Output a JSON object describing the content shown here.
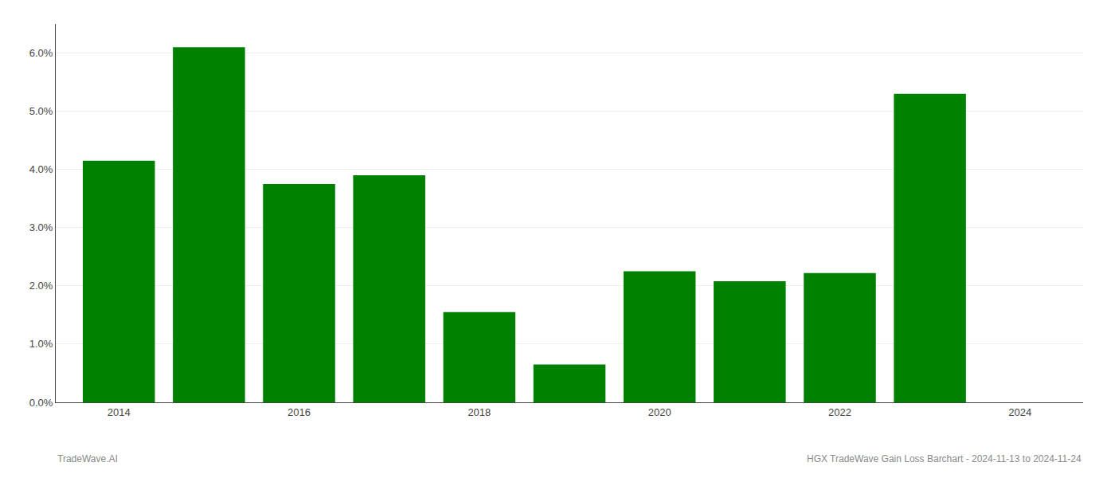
{
  "chart_data": {
    "type": "bar",
    "x": [
      2014,
      2015,
      2016,
      2017,
      2018,
      2019,
      2020,
      2021,
      2022,
      2023
    ],
    "values": [
      0.0415,
      0.061,
      0.0375,
      0.039,
      0.0155,
      0.0065,
      0.0225,
      0.0208,
      0.0222,
      0.053
    ],
    "color": "#008000",
    "xlim": [
      2013.3,
      2024.7
    ],
    "xticks": [
      2014,
      2016,
      2018,
      2020,
      2022,
      2024
    ],
    "ylim": [
      0.0,
      0.065
    ],
    "yticks": [
      {
        "value": 0.0,
        "label": "0.0%"
      },
      {
        "value": 0.01,
        "label": "1.0%"
      },
      {
        "value": 0.02,
        "label": "2.0%"
      },
      {
        "value": 0.03,
        "label": "3.0%"
      },
      {
        "value": 0.04,
        "label": "4.0%"
      },
      {
        "value": 0.05,
        "label": "5.0%"
      },
      {
        "value": 0.06,
        "label": "6.0%"
      }
    ],
    "grid": true,
    "annotations": [
      "TradeWave.AI",
      "HGX TradeWave Gain Loss Barchart - 2024-11-13 to 2024-11-24"
    ]
  }
}
